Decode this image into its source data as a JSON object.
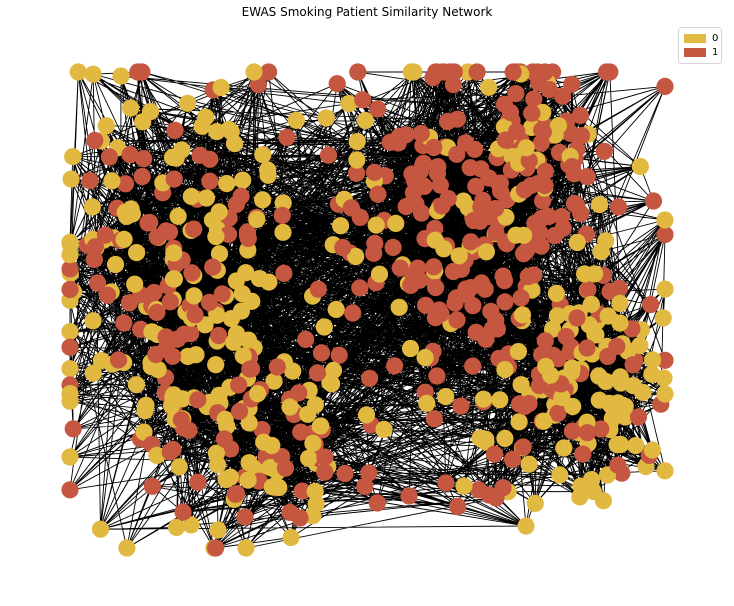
{
  "title": "EWAS Smoking Patient Similarity Network",
  "legend": [
    {
      "label": "0",
      "color": "#e1b840"
    },
    {
      "label": "1",
      "color": "#c55640"
    }
  ],
  "style": {
    "edge_color": "#000000",
    "node_radius_note": "uniform"
  }
}
